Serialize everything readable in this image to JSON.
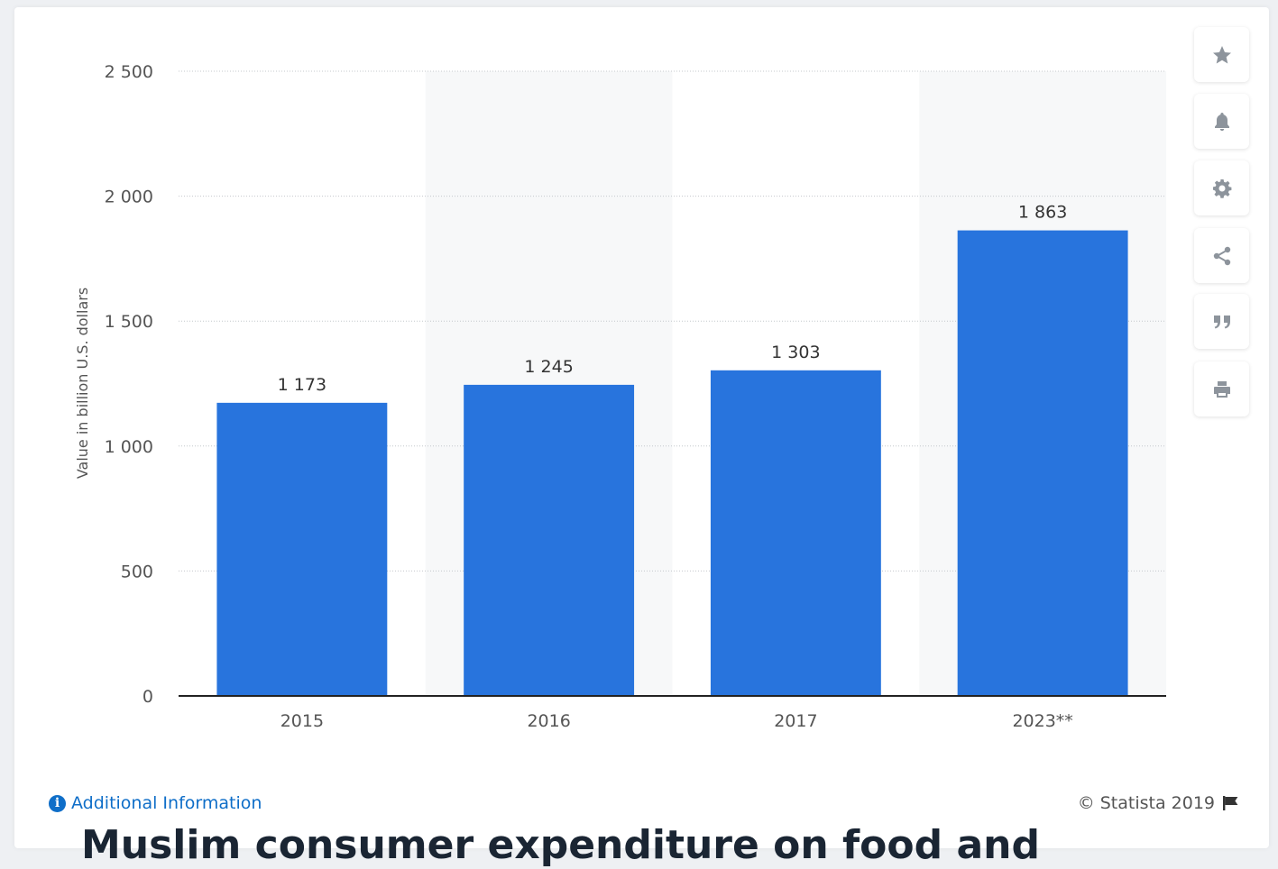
{
  "chart_data": {
    "type": "bar",
    "categories": [
      "2015",
      "2016",
      "2017",
      "2023**"
    ],
    "values": [
      1173,
      1245,
      1303,
      1863
    ],
    "value_labels": [
      "1 173",
      "1 245",
      "1 303",
      "1 863"
    ],
    "ylabel": "Value in billion U.S. dollars",
    "xlabel": "",
    "ylim": [
      0,
      2500
    ],
    "yticks": [
      0,
      500,
      1000,
      1500,
      2000,
      2500
    ],
    "ytick_labels": [
      "0",
      "500",
      "1 000",
      "1 500",
      "2 000",
      "2 500"
    ],
    "grid": true,
    "bar_color": "#2874dd",
    "alt_band_color": "#f7f8f9"
  },
  "toolbar": {
    "icons": [
      "star-icon",
      "bell-icon",
      "gear-icon",
      "share-icon",
      "quote-icon",
      "print-icon"
    ]
  },
  "footer": {
    "info_label": "Additional Information",
    "copyright": "© Statista 2019"
  },
  "heading": "Muslim consumer expenditure on food and"
}
